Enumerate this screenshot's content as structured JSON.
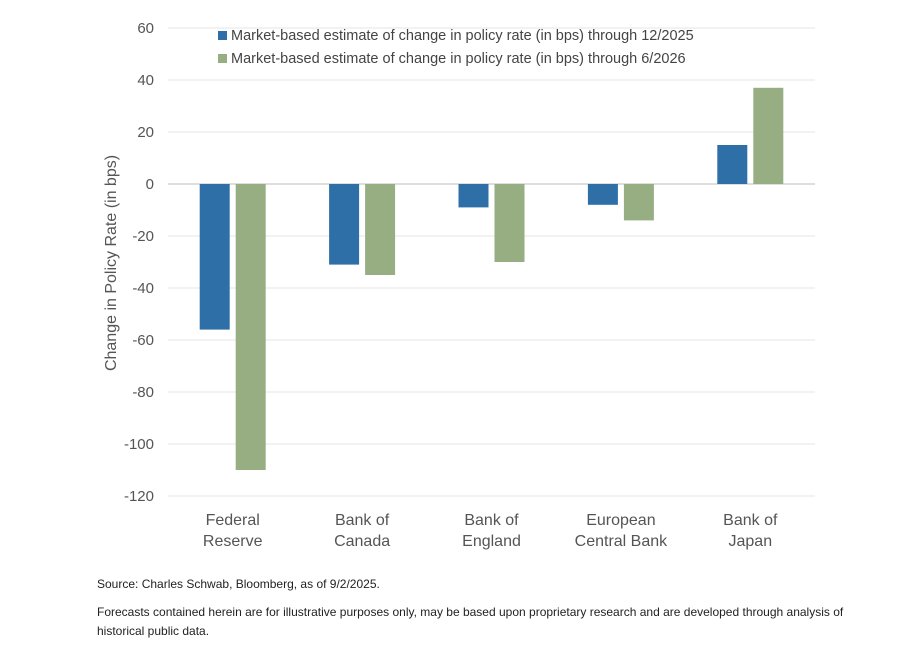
{
  "chart_data": {
    "type": "bar",
    "title": "",
    "xlabel": "",
    "ylabel": "Change in Policy Rate (in bps)",
    "ylim": [
      -120,
      60
    ],
    "yticks": [
      60,
      40,
      20,
      0,
      -20,
      -40,
      -60,
      -80,
      -100,
      -120
    ],
    "grid": true,
    "legend_position": "top",
    "categories": [
      [
        "Federal",
        "Reserve"
      ],
      [
        "Bank of",
        "Canada"
      ],
      [
        "Bank of",
        "England"
      ],
      [
        "European",
        "Central Bank"
      ],
      [
        "Bank of",
        "Japan"
      ]
    ],
    "series": [
      {
        "name": "Market-based estimate of change in policy rate (in bps) through 12/2025",
        "color": "#2e6fa7",
        "values": [
          -56,
          -31,
          -9,
          -8,
          15
        ]
      },
      {
        "name": "Market-based estimate of change in policy rate (in bps) through 6/2026",
        "color": "#97ae82",
        "values": [
          -110,
          -35,
          -30,
          -14,
          37
        ]
      }
    ]
  },
  "notes": {
    "source": "Source: Charles Schwab, Bloomberg, as of 9/2/2025.",
    "disclaimer": "Forecasts contained herein are for illustrative purposes only, may be based upon proprietary research and are developed through analysis of historical public data."
  }
}
